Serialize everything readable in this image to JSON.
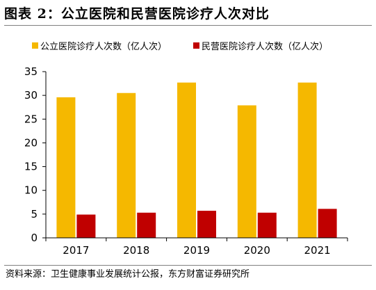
{
  "header": {
    "title": "图表 2：公立医院和民营医院诊疗人次对比"
  },
  "footer": {
    "source": "资料来源：卫生健康事业发展统计公报，东方财富证券研究所"
  },
  "chart_data": {
    "type": "bar",
    "title": "",
    "xlabel": "",
    "ylabel": "",
    "categories": [
      "2017",
      "2018",
      "2019",
      "2020",
      "2021"
    ],
    "series": [
      {
        "name": "公立医院诊疗人次数（亿人次）",
        "color": "#F5B800",
        "values": [
          29.6,
          30.5,
          32.7,
          27.9,
          32.7
        ]
      },
      {
        "name": "民营医院诊疗人次数（亿人次）",
        "color": "#C00000",
        "values": [
          4.9,
          5.3,
          5.7,
          5.3,
          6.1
        ]
      }
    ],
    "ylim": [
      0,
      35
    ],
    "yticks": [
      "0",
      "5",
      "10",
      "15",
      "20",
      "25",
      "30",
      "35"
    ],
    "grid": false,
    "legend_position": "top"
  }
}
